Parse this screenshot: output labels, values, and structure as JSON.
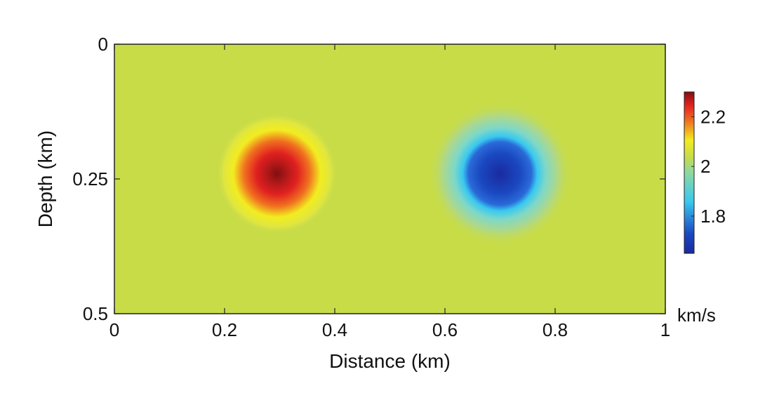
{
  "chart_data": {
    "type": "heatmap",
    "title": "",
    "xlabel": "Distance (km)",
    "ylabel": "Depth (km)",
    "xlim": [
      0,
      1
    ],
    "ylim": [
      0,
      0.5
    ],
    "y_inverted": true,
    "x_ticks": [
      0,
      0.2,
      0.4,
      0.6,
      0.8,
      1
    ],
    "x_tick_labels": [
      "0",
      "0.2",
      "0.4",
      "0.6",
      "0.8",
      "1"
    ],
    "y_ticks": [
      0,
      0.25,
      0.5
    ],
    "y_tick_labels": [
      "0",
      "0.25",
      "0.5"
    ],
    "background_value": 2.0,
    "anomalies": [
      {
        "center_x": 0.295,
        "center_depth": 0.24,
        "peak_value": 2.3,
        "radius_km": 0.11
      },
      {
        "center_x": 0.7,
        "center_depth": 0.24,
        "peak_value": 1.65,
        "radius_km": 0.13
      }
    ],
    "colorbar": {
      "label": "km/s",
      "min": 1.65,
      "max": 2.3,
      "ticks": [
        1.8,
        2.0,
        2.2
      ],
      "tick_labels": [
        "1.8",
        "2",
        "2.2"
      ],
      "position": "right"
    },
    "grid": false,
    "colors": {
      "dark_red": "#7f1010",
      "red": "#e02020",
      "orange": "#f07020",
      "yellow": "#f2ec20",
      "yellow_green": "#c8dc48",
      "cyan": "#38c8f0",
      "blue": "#1a48c0",
      "dark_blue": "#1a2aa0"
    }
  }
}
